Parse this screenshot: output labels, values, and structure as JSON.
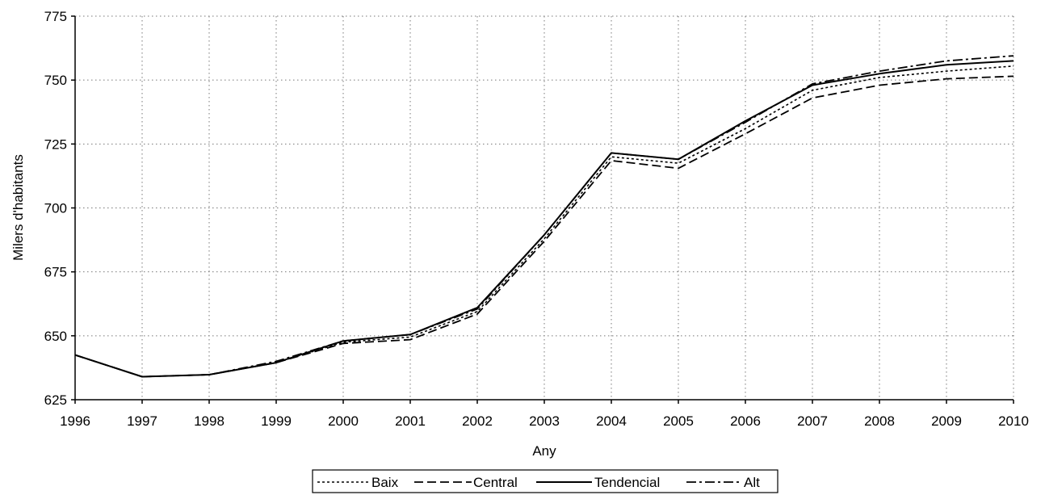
{
  "chart_data": {
    "type": "line",
    "xlabel": "Any",
    "ylabel": "Milers d'habitants",
    "xlim": [
      1996,
      2010
    ],
    "ylim": [
      625,
      775
    ],
    "x_ticks": [
      "1996",
      "1997",
      "1998",
      "1999",
      "2000",
      "2001",
      "2002",
      "2003",
      "2004",
      "2005",
      "2006",
      "2007",
      "2008",
      "2009",
      "2010"
    ],
    "y_ticks": [
      "625",
      "650",
      "675",
      "700",
      "725",
      "750",
      "775"
    ],
    "grid": "dotted",
    "legend_position": "bottom",
    "x": [
      1996,
      1997,
      1998,
      1999,
      2000,
      2001,
      2002,
      2003,
      2004,
      2005,
      2006,
      2007,
      2008,
      2009,
      2010
    ],
    "series": [
      {
        "name": "Baix",
        "dash": "dotted",
        "values": [
          642.5,
          634,
          634.8,
          639.5,
          647.5,
          649.5,
          659.5,
          688,
          720,
          717.5,
          731,
          746,
          751,
          753.5,
          755.5
        ]
      },
      {
        "name": "Central",
        "dash": "dashed",
        "values": [
          642.5,
          634,
          634.8,
          639.5,
          647,
          648.5,
          658.5,
          687,
          718.5,
          715.5,
          729,
          743,
          748,
          750.5,
          751.5
        ]
      },
      {
        "name": "Tendencial",
        "dash": "solid",
        "values": [
          642.5,
          634,
          634.8,
          639.5,
          648,
          650.5,
          661,
          689.5,
          721.5,
          719,
          734,
          748,
          752.5,
          756,
          757.5
        ]
      },
      {
        "name": "Alt",
        "dash": "dashdot",
        "values": [
          642.5,
          634,
          634.8,
          640,
          648,
          650.5,
          660.5,
          689.5,
          721.5,
          719,
          733.5,
          748.5,
          753.5,
          757.5,
          759.5
        ]
      }
    ]
  }
}
